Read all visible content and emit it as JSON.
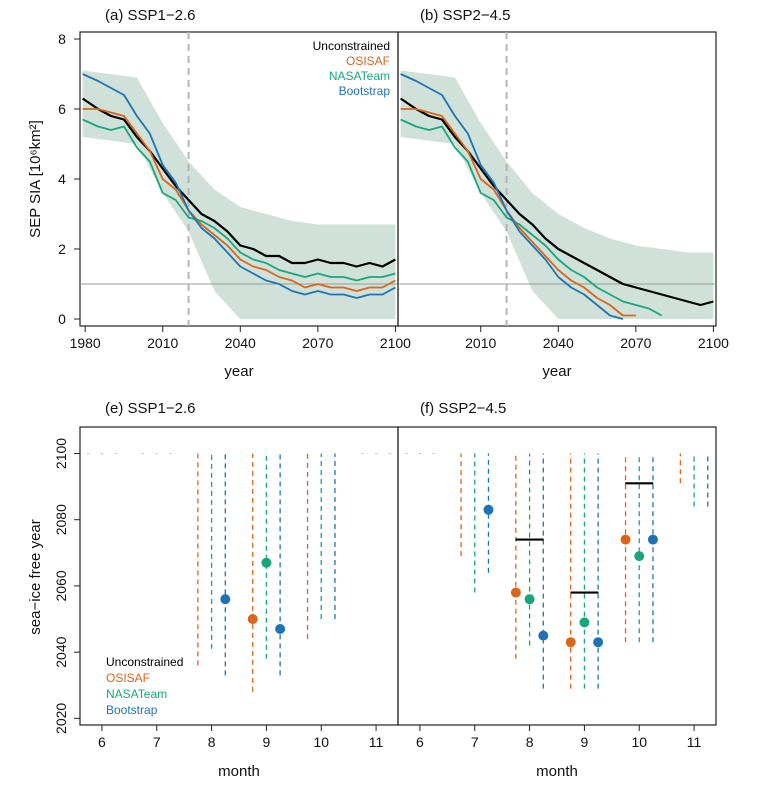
{
  "colors": {
    "Unconstrained": "#000000",
    "OSISAF": "#d9661a",
    "NASATeam": "#1aa67d",
    "Bootstrap": "#1f73b4",
    "band": "#a8c8b8",
    "threshold": "#9a9a9a",
    "dashed_vline": "#b5b5b5"
  },
  "chart_data": [
    {
      "id": "a",
      "type": "line",
      "title": "(a) SSP1−2.6",
      "ylabel": "SEP SIA [10⁶km²]",
      "xlabel": "year",
      "xlim": [
        1978,
        2101
      ],
      "ylim": [
        -0.2,
        8.2
      ],
      "xticks": [
        1980,
        2010,
        2040,
        2070,
        2100
      ],
      "yticks": [
        0,
        2,
        4,
        6,
        8
      ],
      "threshold": 1,
      "observation_end_year": 2020,
      "legend": [
        "Unconstrained",
        "OSISAF",
        "NASATeam",
        "Bootstrap"
      ],
      "legend_position": "top-right",
      "band": {
        "x": [
          1979,
          2000,
          2010,
          2020,
          2030,
          2040,
          2050,
          2060,
          2070,
          2080,
          2090,
          2100
        ],
        "upper": [
          7.1,
          6.9,
          5.6,
          4.5,
          3.7,
          3.2,
          3.0,
          2.8,
          2.7,
          2.7,
          2.7,
          2.7
        ],
        "lower": [
          5.2,
          5.0,
          3.6,
          2.5,
          0.8,
          0.0,
          0.0,
          0.0,
          0.0,
          0.0,
          0.0,
          0.0
        ]
      },
      "series": [
        {
          "name": "Unconstrained",
          "x": [
            1979,
            1985,
            1990,
            1995,
            2000,
            2005,
            2010,
            2015,
            2020,
            2025,
            2030,
            2035,
            2040,
            2045,
            2050,
            2055,
            2060,
            2065,
            2070,
            2075,
            2080,
            2085,
            2090,
            2095,
            2100
          ],
          "y": [
            6.3,
            6.0,
            5.8,
            5.7,
            5.2,
            4.8,
            4.3,
            3.8,
            3.4,
            3.0,
            2.8,
            2.5,
            2.1,
            2.0,
            1.8,
            1.8,
            1.6,
            1.6,
            1.7,
            1.6,
            1.6,
            1.5,
            1.6,
            1.5,
            1.7
          ]
        },
        {
          "name": "OSISAF",
          "x": [
            1979,
            1985,
            1990,
            1995,
            2000,
            2005,
            2010,
            2015,
            2020,
            2025,
            2030,
            2035,
            2040,
            2045,
            2050,
            2055,
            2060,
            2065,
            2070,
            2075,
            2080,
            2085,
            2090,
            2095,
            2100
          ],
          "y": [
            6.0,
            6.0,
            5.9,
            5.8,
            5.3,
            4.8,
            4.0,
            3.7,
            3.1,
            2.7,
            2.4,
            2.1,
            1.7,
            1.5,
            1.4,
            1.2,
            1.1,
            0.9,
            1.0,
            0.9,
            0.9,
            0.8,
            0.9,
            0.9,
            1.1
          ]
        },
        {
          "name": "NASATeam",
          "x": [
            1979,
            1985,
            1990,
            1995,
            2000,
            2005,
            2010,
            2015,
            2020,
            2025,
            2030,
            2035,
            2040,
            2045,
            2050,
            2055,
            2060,
            2065,
            2070,
            2075,
            2080,
            2085,
            2090,
            2095,
            2100
          ],
          "y": [
            5.7,
            5.5,
            5.4,
            5.5,
            4.9,
            4.5,
            3.6,
            3.4,
            2.9,
            2.8,
            2.6,
            2.3,
            1.9,
            1.7,
            1.6,
            1.4,
            1.3,
            1.2,
            1.3,
            1.2,
            1.2,
            1.1,
            1.2,
            1.2,
            1.3
          ]
        },
        {
          "name": "Bootstrap",
          "x": [
            1979,
            1985,
            1990,
            1995,
            2000,
            2005,
            2010,
            2015,
            2020,
            2025,
            2030,
            2035,
            2040,
            2045,
            2050,
            2055,
            2060,
            2065,
            2070,
            2075,
            2080,
            2085,
            2090,
            2095,
            2100
          ],
          "y": [
            7.0,
            6.8,
            6.6,
            6.4,
            5.8,
            5.3,
            4.4,
            3.9,
            3.1,
            2.6,
            2.3,
            1.9,
            1.5,
            1.3,
            1.1,
            1.0,
            0.8,
            0.7,
            0.8,
            0.7,
            0.7,
            0.6,
            0.7,
            0.7,
            0.9
          ]
        }
      ]
    },
    {
      "id": "b",
      "type": "line",
      "title": "(b) SSP2−4.5",
      "xlabel": "year",
      "xlim": [
        1978,
        2101
      ],
      "ylim": [
        -0.2,
        8.2
      ],
      "xticks": [
        2010,
        2040,
        2070,
        2100
      ],
      "threshold": 1,
      "observation_end_year": 2020,
      "band": {
        "x": [
          1979,
          2000,
          2010,
          2020,
          2030,
          2040,
          2050,
          2060,
          2070,
          2080,
          2090,
          2100
        ],
        "upper": [
          7.1,
          6.9,
          5.6,
          4.5,
          3.6,
          3.0,
          2.6,
          2.3,
          2.1,
          2.0,
          1.9,
          1.9
        ],
        "lower": [
          5.2,
          5.0,
          3.6,
          2.5,
          0.8,
          0.0,
          0.0,
          0.0,
          0.0,
          0.0,
          0.0,
          0.0
        ]
      },
      "series": [
        {
          "name": "Unconstrained",
          "x": [
            1979,
            1985,
            1990,
            1995,
            2000,
            2005,
            2010,
            2015,
            2020,
            2025,
            2030,
            2035,
            2040,
            2045,
            2050,
            2055,
            2060,
            2065,
            2070,
            2075,
            2080,
            2085,
            2090,
            2095,
            2100
          ],
          "y": [
            6.3,
            6.0,
            5.8,
            5.7,
            5.2,
            4.8,
            4.3,
            3.8,
            3.4,
            3.0,
            2.7,
            2.3,
            2.0,
            1.8,
            1.6,
            1.4,
            1.2,
            1.0,
            0.9,
            0.8,
            0.7,
            0.6,
            0.5,
            0.4,
            0.5
          ]
        },
        {
          "name": "OSISAF",
          "x": [
            1979,
            1985,
            1990,
            1995,
            2000,
            2005,
            2010,
            2015,
            2020,
            2025,
            2030,
            2035,
            2040,
            2045,
            2050,
            2055,
            2060,
            2065,
            2070
          ],
          "y": [
            6.0,
            6.0,
            5.9,
            5.8,
            5.3,
            4.8,
            4.0,
            3.7,
            3.1,
            2.6,
            2.2,
            1.8,
            1.4,
            1.1,
            0.9,
            0.6,
            0.4,
            0.1,
            0.1
          ]
        },
        {
          "name": "NASATeam",
          "x": [
            1979,
            1985,
            1990,
            1995,
            2000,
            2005,
            2010,
            2015,
            2020,
            2025,
            2030,
            2035,
            2040,
            2045,
            2050,
            2055,
            2060,
            2065,
            2070,
            2075,
            2080
          ],
          "y": [
            5.7,
            5.5,
            5.4,
            5.5,
            4.9,
            4.5,
            3.6,
            3.4,
            2.9,
            2.7,
            2.4,
            2.1,
            1.7,
            1.4,
            1.2,
            0.9,
            0.7,
            0.5,
            0.4,
            0.3,
            0.1
          ]
        },
        {
          "name": "Bootstrap",
          "x": [
            1979,
            1985,
            1990,
            1995,
            2000,
            2005,
            2010,
            2015,
            2020,
            2025,
            2030,
            2035,
            2040,
            2045,
            2050,
            2055,
            2060,
            2065
          ],
          "y": [
            7.0,
            6.8,
            6.6,
            6.4,
            5.8,
            5.3,
            4.4,
            3.9,
            3.1,
            2.5,
            2.1,
            1.7,
            1.2,
            0.9,
            0.7,
            0.4,
            0.1,
            0.0
          ]
        }
      ]
    },
    {
      "id": "e",
      "type": "scatter",
      "title": "(e) SSP1−2.6",
      "ylabel": "sea−ice free year",
      "xlabel": "month",
      "xlim": [
        5.6,
        11.4
      ],
      "ylim": [
        2018,
        2108
      ],
      "xticks": [
        6,
        7,
        8,
        9,
        10,
        11
      ],
      "yticks": [
        2020,
        2040,
        2060,
        2080,
        2100
      ],
      "legend": [
        "Unconstrained",
        "OSISAF",
        "NASATeam",
        "Bootstrap"
      ],
      "legend_position": "bottom-left",
      "ranges": [
        {
          "series": "OSISAF",
          "x": 7.75,
          "low": 2036,
          "high": 2100
        },
        {
          "series": "NASATeam",
          "x": 8.0,
          "low": 2041,
          "high": 2100
        },
        {
          "series": "Bootstrap",
          "x": 8.25,
          "low": 2033,
          "high": 2100
        },
        {
          "series": "OSISAF",
          "x": 8.75,
          "low": 2028,
          "high": 2100
        },
        {
          "series": "NASATeam",
          "x": 9.0,
          "low": 2038,
          "high": 2100
        },
        {
          "series": "Bootstrap",
          "x": 9.25,
          "low": 2033,
          "high": 2100
        },
        {
          "series": "OSISAF",
          "x": 9.75,
          "low": 2044,
          "high": 2100
        },
        {
          "series": "NASATeam",
          "x": 10.0,
          "low": 2050,
          "high": 2100
        },
        {
          "series": "Bootstrap",
          "x": 10.25,
          "low": 2050,
          "high": 2100
        }
      ],
      "points": [
        {
          "series": "Bootstrap",
          "x": 8.25,
          "y": 2056
        },
        {
          "series": "OSISAF",
          "x": 8.75,
          "y": 2050
        },
        {
          "series": "NASATeam",
          "x": 9.0,
          "y": 2067
        },
        {
          "series": "Bootstrap",
          "x": 9.25,
          "y": 2047
        }
      ],
      "unconstrained_marks": []
    },
    {
      "id": "f",
      "type": "scatter",
      "title": "(f) SSP2−4.5",
      "xlabel": "month",
      "xlim": [
        5.6,
        11.4
      ],
      "ylim": [
        2018,
        2108
      ],
      "xticks": [
        6,
        7,
        8,
        9,
        10,
        11
      ],
      "ranges": [
        {
          "series": "OSISAF",
          "x": 6.75,
          "low": 2069,
          "high": 2100
        },
        {
          "series": "NASATeam",
          "x": 7.0,
          "low": 2058,
          "high": 2100
        },
        {
          "series": "Bootstrap",
          "x": 7.25,
          "low": 2064,
          "high": 2100
        },
        {
          "series": "OSISAF",
          "x": 7.75,
          "low": 2038,
          "high": 2100
        },
        {
          "series": "NASATeam",
          "x": 8.0,
          "low": 2042,
          "high": 2100
        },
        {
          "series": "Bootstrap",
          "x": 8.25,
          "low": 2029,
          "high": 2100
        },
        {
          "series": "OSISAF",
          "x": 8.75,
          "low": 2029,
          "high": 2100
        },
        {
          "series": "NASATeam",
          "x": 9.0,
          "low": 2029,
          "high": 2100
        },
        {
          "series": "Bootstrap",
          "x": 9.25,
          "low": 2029,
          "high": 2100
        },
        {
          "series": "OSISAF",
          "x": 9.75,
          "low": 2043,
          "high": 2100
        },
        {
          "series": "NASATeam",
          "x": 10.0,
          "low": 2043,
          "high": 2100
        },
        {
          "series": "Bootstrap",
          "x": 10.25,
          "low": 2043,
          "high": 2100
        },
        {
          "series": "OSISAF",
          "x": 10.75,
          "low": 2091,
          "high": 2100
        },
        {
          "series": "NASATeam",
          "x": 11.0,
          "low": 2084,
          "high": 2100
        },
        {
          "series": "Bootstrap",
          "x": 11.25,
          "low": 2084,
          "high": 2100
        }
      ],
      "points": [
        {
          "series": "Bootstrap",
          "x": 7.25,
          "y": 2083
        },
        {
          "series": "OSISAF",
          "x": 7.75,
          "y": 2058
        },
        {
          "series": "NASATeam",
          "x": 8.0,
          "y": 2056
        },
        {
          "series": "Bootstrap",
          "x": 8.25,
          "y": 2045
        },
        {
          "series": "OSISAF",
          "x": 8.75,
          "y": 2043
        },
        {
          "series": "NASATeam",
          "x": 9.0,
          "y": 2049
        },
        {
          "series": "Bootstrap",
          "x": 9.25,
          "y": 2043
        },
        {
          "series": "OSISAF",
          "x": 9.75,
          "y": 2074
        },
        {
          "series": "NASATeam",
          "x": 10.0,
          "y": 2069
        },
        {
          "series": "Bootstrap",
          "x": 10.25,
          "y": 2074
        }
      ],
      "unconstrained_marks": [
        {
          "x": 8.0,
          "y": 2074
        },
        {
          "x": 9.0,
          "y": 2058
        },
        {
          "x": 10.0,
          "y": 2091
        }
      ]
    }
  ]
}
